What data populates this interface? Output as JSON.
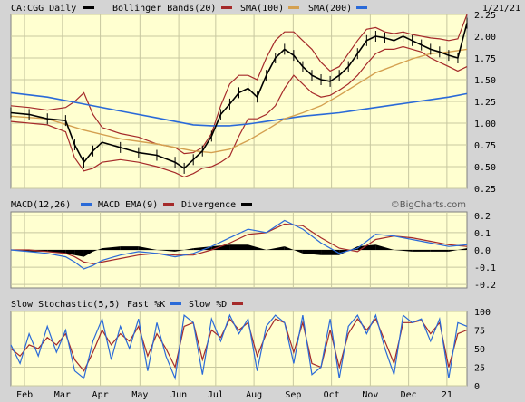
{
  "chart_data": [
    {
      "type": "line",
      "panel": "price",
      "title": "CA:CGG Daily",
      "date_label": "1/21/21",
      "legend": [
        {
          "label": "Bollinger Bands(20)",
          "color": "#000000"
        },
        {
          "label": "SMA(100)",
          "color": "#a52a2a"
        },
        {
          "label": "SMA(200)",
          "color": "#d4a050"
        },
        {
          "label": "",
          "color": "#2a6ad8"
        }
      ],
      "yticks": [
        "2.25",
        "2.00",
        "1.75",
        "1.50",
        "1.25",
        "1.00",
        "0.75",
        "0.50",
        "0.25"
      ],
      "ylim": [
        0.25,
        2.25
      ],
      "xlim": [
        0,
        100
      ],
      "x_ticks": [
        {
          "label": "Feb",
          "x": 3
        },
        {
          "label": "Mar",
          "x": 11.3
        },
        {
          "label": "Apr",
          "x": 19.6
        },
        {
          "label": "May",
          "x": 28.3
        },
        {
          "label": "Jun",
          "x": 36.8
        },
        {
          "label": "Jul",
          "x": 44.9
        },
        {
          "label": "Aug",
          "x": 53.3
        },
        {
          "label": "Sep",
          "x": 61.9
        },
        {
          "label": "Oct",
          "x": 70.3
        },
        {
          "label": "Nov",
          "x": 78.8
        },
        {
          "label": "Dec",
          "x": 87.2
        },
        {
          "label": "21",
          "x": 95.6
        }
      ],
      "price": {
        "x": [
          0,
          4,
          8,
          12,
          14,
          16,
          18,
          20,
          24,
          28,
          32,
          36,
          38,
          40,
          42,
          44,
          46,
          48,
          50,
          52,
          54,
          56,
          58,
          60,
          62,
          64,
          66,
          68,
          70,
          72,
          74,
          76,
          78,
          80,
          82,
          84,
          86,
          88,
          90,
          92,
          94,
          96,
          98,
          100
        ],
        "y": [
          1.12,
          1.1,
          1.05,
          1.03,
          0.75,
          0.55,
          0.68,
          0.78,
          0.72,
          0.66,
          0.63,
          0.55,
          0.48,
          0.58,
          0.68,
          0.85,
          1.1,
          1.22,
          1.35,
          1.4,
          1.3,
          1.55,
          1.75,
          1.85,
          1.78,
          1.65,
          1.55,
          1.5,
          1.48,
          1.55,
          1.65,
          1.8,
          1.95,
          2.0,
          1.98,
          1.95,
          2.0,
          1.95,
          1.9,
          1.85,
          1.82,
          1.78,
          1.75,
          2.15
        ]
      },
      "bb_upper": {
        "x": [
          0,
          4,
          8,
          12,
          14,
          16,
          18,
          20,
          24,
          28,
          32,
          36,
          38,
          40,
          42,
          44,
          46,
          48,
          50,
          52,
          54,
          56,
          58,
          60,
          62,
          64,
          66,
          68,
          70,
          72,
          74,
          76,
          78,
          80,
          82,
          84,
          86,
          88,
          90,
          92,
          94,
          96,
          98,
          100
        ],
        "y": [
          1.2,
          1.18,
          1.15,
          1.18,
          1.25,
          1.35,
          1.1,
          0.95,
          0.88,
          0.84,
          0.76,
          0.72,
          0.65,
          0.66,
          0.72,
          0.88,
          1.2,
          1.45,
          1.55,
          1.55,
          1.5,
          1.75,
          1.95,
          2.05,
          2.05,
          1.95,
          1.85,
          1.7,
          1.6,
          1.65,
          1.8,
          1.95,
          2.08,
          2.1,
          2.05,
          2.03,
          2.05,
          2.02,
          2.0,
          1.98,
          1.97,
          1.95,
          1.97,
          2.25
        ]
      },
      "bb_lower": {
        "x": [
          0,
          4,
          8,
          12,
          14,
          16,
          18,
          20,
          24,
          28,
          32,
          36,
          38,
          40,
          42,
          44,
          46,
          48,
          50,
          52,
          54,
          56,
          58,
          60,
          62,
          64,
          66,
          68,
          70,
          72,
          74,
          76,
          78,
          80,
          82,
          84,
          86,
          88,
          90,
          92,
          94,
          96,
          98,
          100
        ],
        "y": [
          1.02,
          1.0,
          0.98,
          0.9,
          0.6,
          0.45,
          0.48,
          0.55,
          0.58,
          0.55,
          0.5,
          0.43,
          0.38,
          0.42,
          0.48,
          0.5,
          0.55,
          0.62,
          0.85,
          1.05,
          1.05,
          1.1,
          1.2,
          1.4,
          1.55,
          1.45,
          1.35,
          1.3,
          1.32,
          1.38,
          1.45,
          1.55,
          1.68,
          1.8,
          1.85,
          1.85,
          1.88,
          1.85,
          1.82,
          1.75,
          1.7,
          1.65,
          1.6,
          1.65
        ]
      },
      "sma100": {
        "x": [
          0,
          8,
          16,
          24,
          32,
          40,
          44,
          48,
          52,
          56,
          60,
          64,
          68,
          72,
          76,
          80,
          84,
          88,
          92,
          96,
          100
        ],
        "y": [
          1.08,
          1.05,
          0.92,
          0.82,
          0.76,
          0.68,
          0.66,
          0.7,
          0.8,
          0.92,
          1.05,
          1.12,
          1.2,
          1.32,
          1.45,
          1.58,
          1.66,
          1.74,
          1.8,
          1.82,
          1.85
        ]
      },
      "sma200": {
        "x": [
          0,
          8,
          16,
          24,
          32,
          40,
          44,
          48,
          52,
          56,
          60,
          64,
          68,
          72,
          76,
          80,
          84,
          88,
          92,
          96,
          100
        ],
        "y": [
          1.35,
          1.3,
          1.22,
          1.14,
          1.06,
          0.98,
          0.97,
          0.97,
          0.99,
          1.02,
          1.05,
          1.08,
          1.1,
          1.12,
          1.15,
          1.18,
          1.21,
          1.24,
          1.27,
          1.3,
          1.34
        ]
      }
    },
    {
      "type": "line",
      "panel": "macd",
      "title": "MACD(12,26)",
      "legend": [
        {
          "label": "MACD(12,26)",
          "color": "#2a6ad8"
        },
        {
          "label": "MACD EMA(9)",
          "color": "#a52a2a"
        },
        {
          "label": "Divergence",
          "color": "#000000"
        }
      ],
      "watermark": "©BigCharts.com",
      "yticks": [
        "0.2",
        "0.1",
        "0.0",
        "-0.1",
        "-0.2"
      ],
      "ylim": [
        -0.22,
        0.22
      ],
      "macd": {
        "x": [
          0,
          4,
          8,
          12,
          14,
          16,
          18,
          20,
          24,
          28,
          32,
          36,
          40,
          44,
          48,
          52,
          56,
          60,
          64,
          68,
          72,
          76,
          80,
          84,
          88,
          92,
          96,
          100
        ],
        "y": [
          0.0,
          -0.01,
          -0.02,
          -0.04,
          -0.07,
          -0.11,
          -0.09,
          -0.06,
          -0.03,
          -0.01,
          -0.02,
          -0.04,
          -0.02,
          0.02,
          0.07,
          0.12,
          0.1,
          0.17,
          0.12,
          0.04,
          -0.02,
          0.01,
          0.09,
          0.08,
          0.06,
          0.04,
          0.02,
          0.03
        ]
      },
      "signal": {
        "x": [
          0,
          4,
          8,
          12,
          14,
          16,
          18,
          20,
          24,
          28,
          32,
          36,
          40,
          44,
          48,
          52,
          56,
          60,
          64,
          68,
          72,
          76,
          80,
          84,
          88,
          92,
          96,
          100
        ],
        "y": [
          0.0,
          0.0,
          -0.01,
          -0.02,
          -0.04,
          -0.07,
          -0.08,
          -0.07,
          -0.05,
          -0.03,
          -0.02,
          -0.03,
          -0.03,
          0.0,
          0.04,
          0.09,
          0.1,
          0.15,
          0.14,
          0.07,
          0.01,
          -0.01,
          0.06,
          0.08,
          0.07,
          0.05,
          0.03,
          0.02
        ]
      },
      "divergence": {
        "x": [
          0,
          4,
          8,
          12,
          14,
          16,
          18,
          20,
          24,
          28,
          32,
          36,
          40,
          44,
          48,
          52,
          56,
          60,
          64,
          68,
          72,
          76,
          80,
          84,
          88,
          92,
          96,
          100
        ],
        "y": [
          0.0,
          -0.01,
          -0.01,
          -0.02,
          -0.03,
          -0.04,
          -0.01,
          0.01,
          0.02,
          0.02,
          0.0,
          -0.01,
          0.01,
          0.02,
          0.03,
          0.03,
          0.0,
          0.02,
          -0.02,
          -0.03,
          -0.03,
          0.02,
          0.03,
          0.0,
          -0.01,
          -0.01,
          -0.01,
          0.01
        ]
      }
    },
    {
      "type": "line",
      "panel": "stochastic",
      "title": "Slow Stochastic(5,5)",
      "legend": [
        {
          "label": "Fast %K",
          "color": "#2a6ad8"
        },
        {
          "label": "Slow %D",
          "color": "#a52a2a"
        }
      ],
      "yticks": [
        "100",
        "75",
        "50",
        "25",
        "0"
      ],
      "ylim": [
        0,
        100
      ],
      "fast_k": {
        "x": [
          0,
          2,
          4,
          6,
          8,
          10,
          12,
          14,
          16,
          18,
          20,
          22,
          24,
          26,
          28,
          30,
          32,
          34,
          36,
          38,
          40,
          42,
          44,
          46,
          48,
          50,
          52,
          54,
          56,
          58,
          60,
          62,
          64,
          66,
          68,
          70,
          72,
          74,
          76,
          78,
          80,
          82,
          84,
          86,
          88,
          90,
          92,
          94,
          96,
          98,
          100
        ],
        "y": [
          55,
          30,
          70,
          40,
          80,
          45,
          75,
          20,
          10,
          60,
          90,
          35,
          80,
          50,
          90,
          20,
          85,
          40,
          10,
          95,
          85,
          15,
          90,
          60,
          95,
          70,
          90,
          20,
          80,
          95,
          85,
          30,
          95,
          15,
          25,
          90,
          10,
          80,
          95,
          70,
          95,
          50,
          15,
          95,
          85,
          90,
          60,
          90,
          10,
          85,
          80
        ]
      },
      "slow_d": {
        "x": [
          0,
          2,
          4,
          6,
          8,
          10,
          12,
          14,
          16,
          18,
          20,
          22,
          24,
          26,
          28,
          30,
          32,
          34,
          36,
          38,
          40,
          42,
          44,
          46,
          48,
          50,
          52,
          54,
          56,
          58,
          60,
          62,
          64,
          66,
          68,
          70,
          72,
          74,
          76,
          78,
          80,
          82,
          84,
          86,
          88,
          90,
          92,
          94,
          96,
          98,
          100
        ],
        "y": [
          50,
          40,
          55,
          50,
          65,
          55,
          70,
          35,
          20,
          45,
          75,
          55,
          70,
          60,
          80,
          40,
          70,
          50,
          25,
          80,
          85,
          35,
          75,
          65,
          90,
          75,
          85,
          40,
          70,
          90,
          85,
          45,
          85,
          30,
          25,
          75,
          25,
          70,
          90,
          75,
          90,
          60,
          30,
          85,
          85,
          88,
          70,
          85,
          25,
          70,
          75
        ]
      }
    }
  ]
}
